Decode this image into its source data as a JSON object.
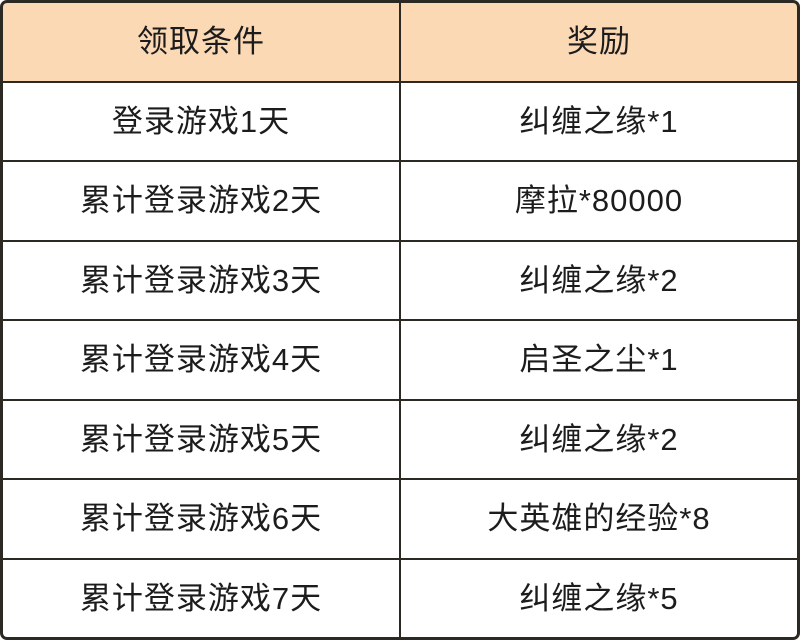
{
  "table": {
    "title": "login-rewards-table",
    "headers": [
      "领取条件",
      "奖励"
    ],
    "rows": [
      {
        "condition": "登录游戏1天",
        "reward": "纠缠之缘*1"
      },
      {
        "condition": "累计登录游戏2天",
        "reward": "摩拉*80000"
      },
      {
        "condition": "累计登录游戏3天",
        "reward": "纠缠之缘*2"
      },
      {
        "condition": "累计登录游戏4天",
        "reward": "启圣之尘*1"
      },
      {
        "condition": "累计登录游戏5天",
        "reward": "纠缠之缘*2"
      },
      {
        "condition": "累计登录游戏6天",
        "reward": "大英雄的经验*8"
      },
      {
        "condition": "累计登录游戏7天",
        "reward": "纠缠之缘*5"
      }
    ]
  },
  "colors": {
    "header_bg": "#fcd9b5",
    "row_bg": "#ffffff",
    "grid_line": "#2c2925",
    "text": "#1c1c1c"
  }
}
